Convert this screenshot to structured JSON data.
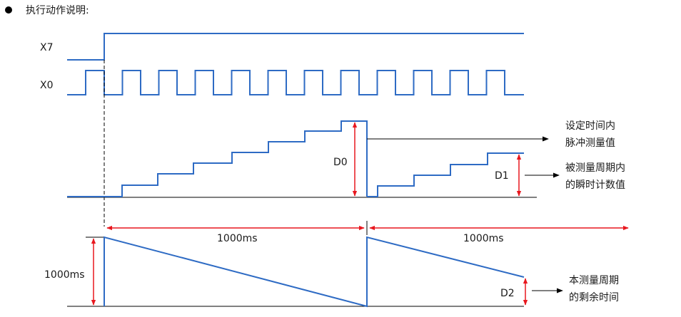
{
  "header": {
    "bullet_icon": "black-circle-bullet",
    "title": "执行动作说明:"
  },
  "diagram": {
    "colors": {
      "waveform": "#2e6bc4",
      "arrow_red": "#e8171e",
      "arrow_black": "#000000",
      "axis": "#000000"
    },
    "signals": {
      "x7_label": "X7",
      "x0_label": "X0"
    },
    "values": {
      "d0_label": "D0",
      "d1_label": "D1",
      "d2_label": "D2"
    },
    "durations": {
      "first_period": "1000ms",
      "second_period": "1000ms",
      "vertical": "1000ms"
    },
    "annotations": {
      "d0_line1": "设定时间内",
      "d0_line2": "脉冲测量值",
      "d1_line1": "被测量周期内",
      "d1_line2": "的瞬时计数值",
      "d2_line1": "本测量周期",
      "d2_line2": "的剩余时间"
    }
  }
}
